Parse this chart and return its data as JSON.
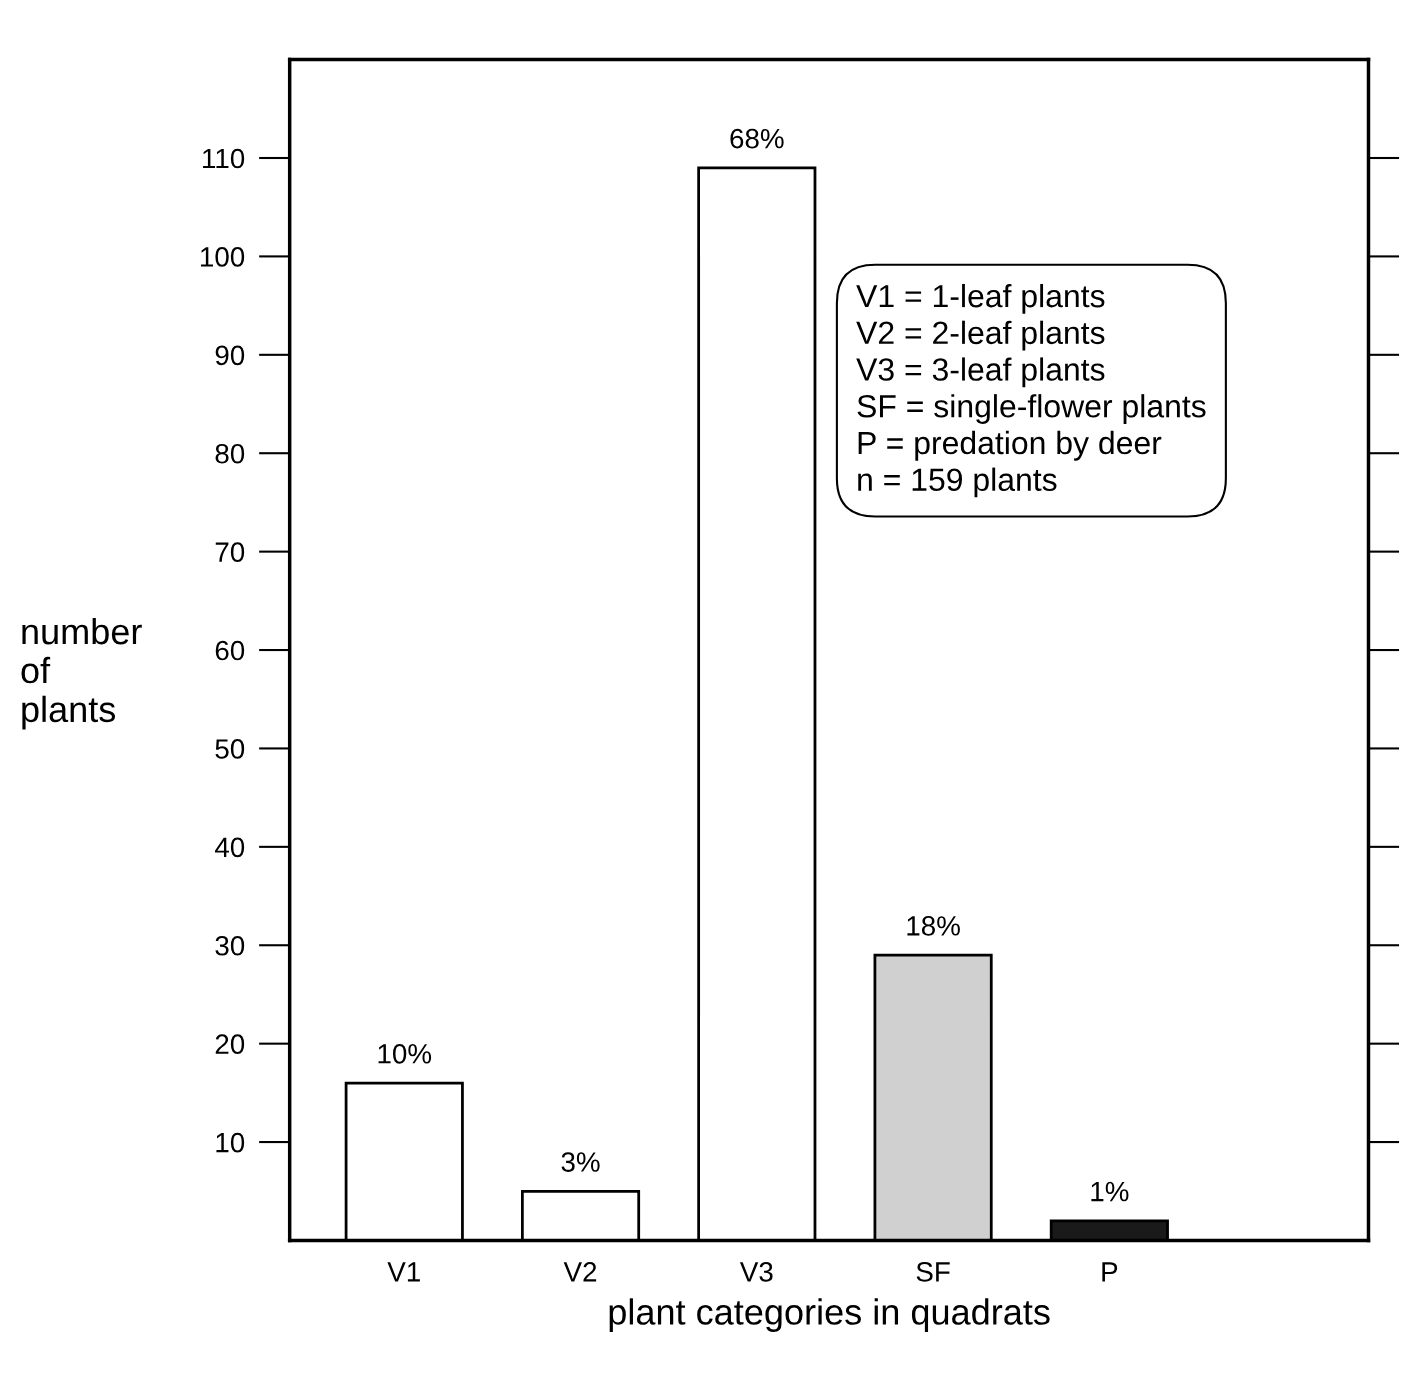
{
  "chart_data": {
    "type": "bar",
    "categories": [
      "V1",
      "V2",
      "V3",
      "SF",
      "P"
    ],
    "values": [
      16,
      5,
      109,
      29,
      2
    ],
    "colors": [
      "#ffffff",
      "#ffffff",
      "#ffffff",
      "#d0d0d0",
      "#1a1a1a"
    ],
    "xlabel": "plant categories in quadrats",
    "ylabel": "number\nof\nplants",
    "ylim": [
      0,
      120
    ],
    "yticks": [
      10,
      20,
      30,
      40,
      50,
      60,
      70,
      80,
      90,
      100,
      110
    ],
    "annotations": [
      {
        "text": "10%",
        "x": "V1",
        "y": 16
      },
      {
        "text": "3%",
        "x": "V2",
        "y": 5
      },
      {
        "text": "68%",
        "x": "V3",
        "y": 109
      },
      {
        "text": "18%",
        "x": "SF",
        "y": 29
      },
      {
        "text": "1%",
        "x": "P",
        "y": 2
      },
      "V1 = 1-leaf plants\nV2 = 2-leaf plants\nV3 = 3-leaf plants\nSF = single-flower plants\nP = predation by deer\nn = 159 plants"
    ],
    "grid": false,
    "legend": false
  }
}
